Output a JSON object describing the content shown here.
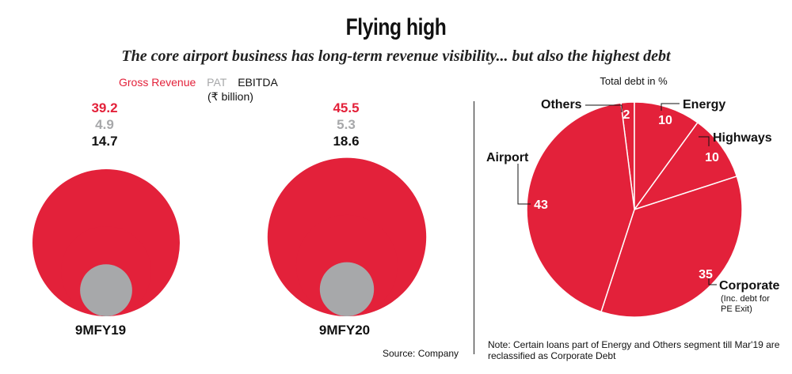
{
  "header": {
    "title": "Flying high",
    "subtitle": "The core airport business has long-term revenue visibility... but also the highest debt"
  },
  "colors": {
    "revenue": "#e3213a",
    "pat": "#a7a8aa",
    "ebitda": "#111111",
    "pie": "#e3213a"
  },
  "chart_data": [
    {
      "type": "bubble",
      "legend": [
        "Gross Revenue",
        "PAT",
        "EBITDA"
      ],
      "unit": "(₹ billion)",
      "series": [
        {
          "name": "Gross Revenue",
          "values": [
            39.2,
            45.5
          ]
        },
        {
          "name": "PAT",
          "values": [
            4.9,
            5.3
          ]
        },
        {
          "name": "EBITDA",
          "values": [
            14.7,
            18.6
          ]
        }
      ],
      "categories": [
        "9MFY19",
        "9MFY20"
      ],
      "values_text": [
        {
          "revenue": "39.2",
          "pat": "4.9",
          "ebitda": "14.7"
        },
        {
          "revenue": "45.5",
          "pat": "5.3",
          "ebitda": "18.6"
        }
      ],
      "source": "Source: Company"
    },
    {
      "type": "pie",
      "title": "Total debt in %",
      "categories": [
        "Others",
        "Energy",
        "Highways",
        "Corporate",
        "Airport"
      ],
      "values": [
        2,
        10,
        10,
        35,
        43
      ],
      "labels": [
        "Others",
        "Energy",
        "Highways",
        "Corporate",
        "Airport"
      ],
      "corporate_note": [
        "(Inc. debt for",
        "PE Exit)"
      ],
      "note": "Note: Certain loans part of Energy and Others segment till Mar'19 are reclassified as Corporate Debt"
    }
  ]
}
